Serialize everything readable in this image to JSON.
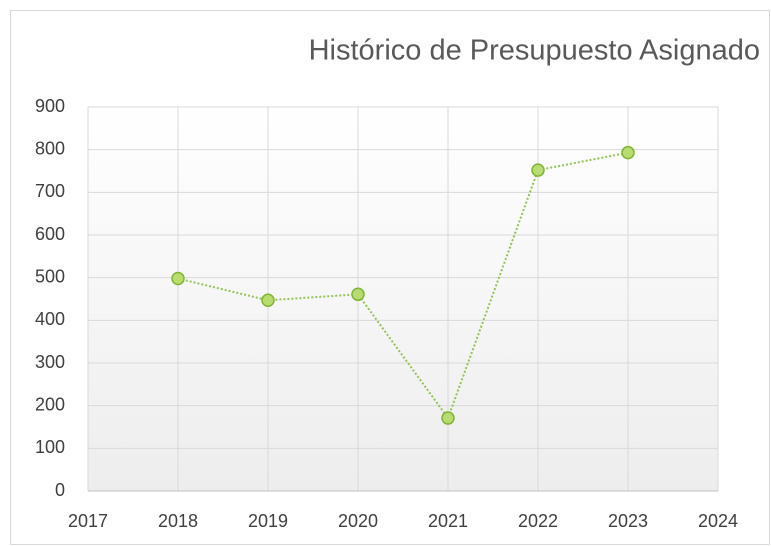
{
  "chart_data": {
    "type": "line",
    "title": "Histórico de Presupuesto Asignado",
    "x": [
      2018,
      2019,
      2020,
      2021,
      2022,
      2023
    ],
    "values": [
      498,
      447,
      461,
      171,
      752,
      793
    ],
    "color": "#92c353",
    "xlim": [
      2017,
      2024
    ],
    "xticks": [
      2017,
      2018,
      2019,
      2020,
      2021,
      2022,
      2023,
      2024
    ],
    "ylim": [
      0,
      900
    ],
    "yticks": [
      0,
      100,
      200,
      300,
      400,
      500,
      600,
      700,
      800,
      900
    ],
    "grid": true
  }
}
